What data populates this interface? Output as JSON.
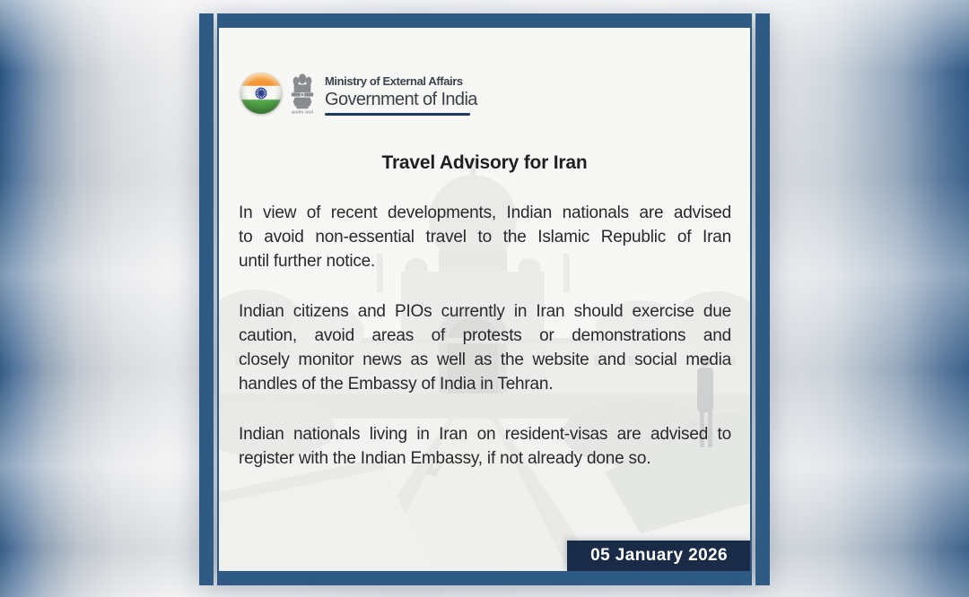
{
  "logo": {
    "ministry": "Ministry of External Affairs",
    "government": "Government of India",
    "motto": "सत्यमेव जयते"
  },
  "advisory": {
    "title": "Travel Advisory for Iran",
    "paragraphs": [
      [
        "In view of recent developments, Indian nationals are advised",
        "to avoid non-essential travel to the Islamic Republic of Iran",
        "until further notice."
      ],
      [
        "Indian citizens and PIOs currently in Iran should exercise due",
        "caution, avoid areas of protests or demonstrations and",
        "closely monitor news as well as the website and social media",
        "handles of the Embassy of India in Tehran."
      ],
      [
        "Indian nationals living in Iran on resident-visas are advised to",
        "register with the Indian Embassy, if not already done so."
      ]
    ],
    "date": "05 January 2026"
  },
  "colors": {
    "frame_navy": "#2e5a84",
    "badge_navy": "#1a2b47",
    "underline_navy": "#1d3a5e",
    "chakra_navy": "#2a3f8f",
    "flag_saffron": "#f0922f",
    "flag_green": "#3f8f38",
    "body_text": "#29292c",
    "logo_text": "#3d434d"
  }
}
